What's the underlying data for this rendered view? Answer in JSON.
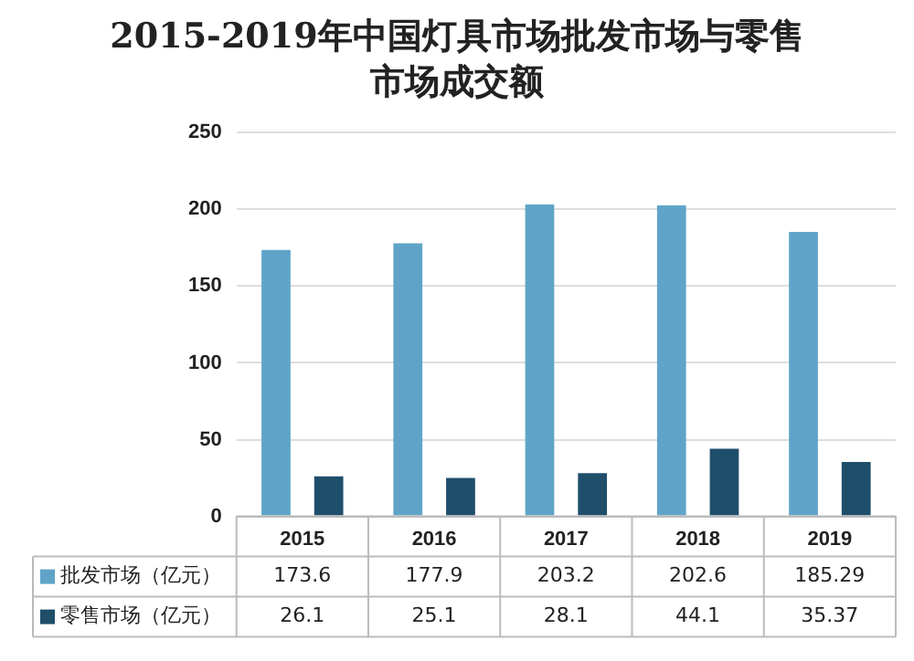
{
  "chart_data": {
    "type": "bar",
    "title": "2015-2019年中国灯具市场批发市场与零售市场成交额",
    "categories": [
      "2015",
      "2016",
      "2017",
      "2018",
      "2019"
    ],
    "series": [
      {
        "name": "批发市场（亿元）",
        "color": "#5fa4c8",
        "values": [
          173.6,
          177.9,
          203.2,
          202.6,
          185.29
        ]
      },
      {
        "name": "零售市场（亿元）",
        "color": "#1f4e6b",
        "values": [
          26.1,
          25.1,
          28.1,
          44.1,
          35.37
        ]
      }
    ],
    "ylim": [
      0,
      250
    ],
    "yticks": [
      0,
      50,
      100,
      150,
      200,
      250
    ],
    "grid": "y",
    "legend": "bottom",
    "data_labels": true
  }
}
